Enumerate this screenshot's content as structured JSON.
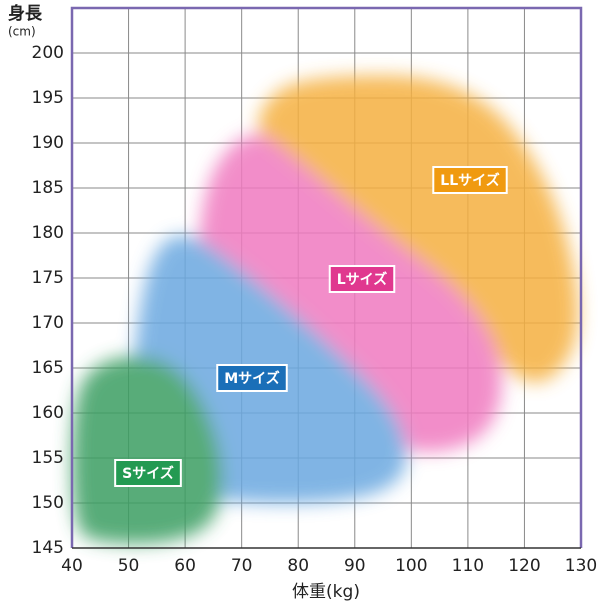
{
  "chart_data": {
    "type": "region",
    "y_label_top": "身長",
    "y_label_unit": "(cm)",
    "x_label": "体重(kg)",
    "xlim": [
      40,
      130
    ],
    "xticks": [
      40,
      50,
      60,
      70,
      80,
      90,
      100,
      110,
      120,
      130
    ],
    "ylim": [
      145,
      205
    ],
    "yticks": [
      145,
      150,
      155,
      160,
      165,
      170,
      175,
      180,
      185,
      190,
      195,
      200
    ],
    "grid": true,
    "series": [
      {
        "name": "LLサイズ",
        "color": "#f5b040",
        "label_color": "#f09a10",
        "x": [
          73,
          80,
          110,
          125,
          131,
          125,
          117,
          110,
          95,
          80,
          73
        ],
        "y": [
          194,
          197.5,
          197.5,
          186,
          170,
          163,
          164,
          172,
          179,
          187,
          190
        ]
      },
      {
        "name": "Lサイズ",
        "color": "#f07ac0",
        "label_color": "#e0388f",
        "x": [
          62,
          64,
          72,
          80,
          95,
          110,
          117,
          114,
          100,
          90,
          80,
          70,
          62
        ],
        "y": [
          177,
          187,
          192,
          188,
          180,
          173,
          165,
          157,
          155,
          160,
          167,
          172,
          174
        ]
      },
      {
        "name": "Mサイズ",
        "color": "#6aa8e0",
        "label_color": "#1a6fb8",
        "x": [
          51,
          54,
          60,
          70,
          85,
          98,
          100,
          90,
          65,
          58,
          51
        ],
        "y": [
          168,
          178,
          180.5,
          176,
          168,
          160,
          153,
          150,
          150,
          153,
          160
        ]
      },
      {
        "name": "Sサイズ",
        "color": "#3a9e62",
        "label_color": "#239a52",
        "x": [
          40,
          40,
          45,
          55,
          62,
          67,
          66,
          58,
          45
        ],
        "y": [
          147,
          162,
          166,
          166.5,
          163,
          155,
          148,
          145.5,
          145.5
        ]
      }
    ]
  }
}
